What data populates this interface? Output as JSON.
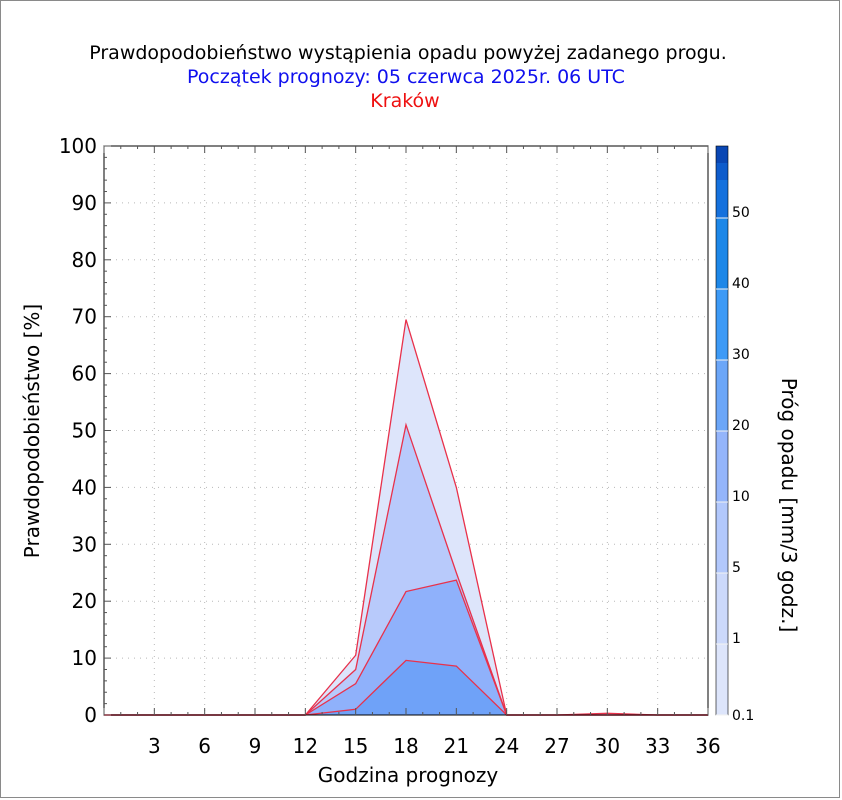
{
  "chart_data": {
    "type": "area",
    "title": "Prawdopodobieństwo wystąpienia opadu powyżej zadanego progu.",
    "subtitle": "Początek prognozy: 05 czerwca 2025r. 06 UTC",
    "location": "Kraków",
    "xlabel": "Godzina prognozy",
    "ylabel": "Prawdopodobieństwo [%]",
    "colorbar_label": "Próg opadu [mm/3 godz.]",
    "xlim": [
      0,
      36
    ],
    "ylim": [
      0,
      100
    ],
    "xticks": [
      "3",
      "6",
      "9",
      "12",
      "15",
      "18",
      "21",
      "24",
      "27",
      "30",
      "33",
      "36"
    ],
    "yticks": [
      "0",
      "10",
      "20",
      "30",
      "40",
      "50",
      "60",
      "70",
      "80",
      "90",
      "100"
    ],
    "colorbar_ticks": [
      "0.1",
      "1",
      "5",
      "10",
      "20",
      "30",
      "40",
      "50"
    ],
    "colorbar_colors": [
      "#dde5fb",
      "#ccd9fb",
      "#b2c8fc",
      "#94b5fb",
      "#6ba6f8",
      "#3d9af6",
      "#1d87e8",
      "#1571dd",
      "#0e5ccc",
      "#0a47b4"
    ],
    "x": [
      0,
      3,
      6,
      9,
      12,
      15,
      18,
      21,
      24,
      27,
      30,
      33,
      36
    ],
    "series": [
      {
        "name": "0.1",
        "color": "#dde5fb",
        "values": [
          0,
          0,
          0,
          0,
          0,
          10.5,
          69.5,
          40,
          0,
          0,
          0.3,
          0,
          0
        ]
      },
      {
        "name": "1",
        "color": "#b8cafb",
        "values": [
          0,
          0,
          0,
          0,
          0,
          8,
          51,
          25,
          0,
          0,
          0,
          0,
          0
        ]
      },
      {
        "name": "5",
        "color": "#8fb1fb",
        "values": [
          0,
          0,
          0,
          0,
          0,
          5.5,
          21.7,
          23.7,
          0,
          0,
          0,
          0,
          0
        ]
      },
      {
        "name": "10",
        "color": "#6fa2f8",
        "values": [
          0,
          0,
          0,
          0,
          0,
          1,
          9.6,
          8.6,
          0,
          0,
          0,
          0,
          0
        ]
      }
    ],
    "line_color": "#e8314b",
    "title_color": "#000000",
    "subtitle_color": "#1010ee",
    "location_color": "#ee1010",
    "grid": true
  }
}
